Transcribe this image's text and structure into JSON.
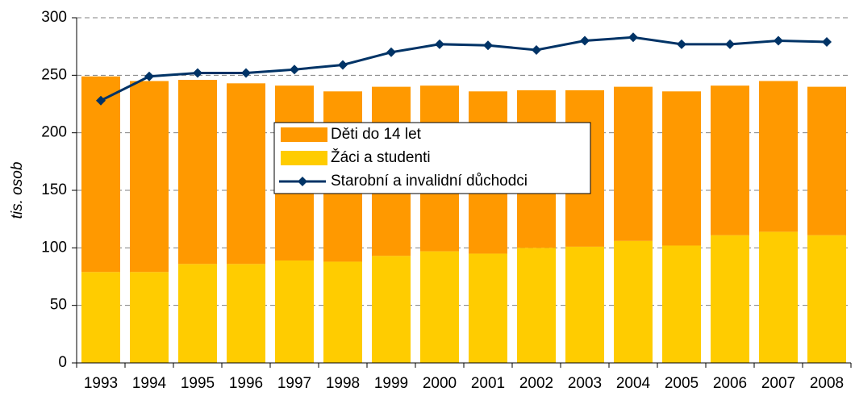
{
  "chart_data": {
    "type": "bar",
    "y_label": "tis. osob",
    "categories": [
      "1993",
      "1994",
      "1995",
      "1996",
      "1997",
      "1998",
      "1999",
      "2000",
      "2001",
      "2002",
      "2003",
      "2004",
      "2005",
      "2006",
      "2007",
      "2008"
    ],
    "series": [
      {
        "name": "Žáci a studenti",
        "color": "#ffcc00",
        "values": [
          79,
          79,
          86,
          86,
          89,
          88,
          93,
          97,
          95,
          100,
          101,
          106,
          102,
          111,
          114,
          111
        ]
      },
      {
        "name": "Děti do 14 let",
        "color": "#ff9900",
        "values": [
          170,
          166,
          160,
          157,
          152,
          148,
          147,
          144,
          141,
          137,
          136,
          134,
          134,
          130,
          131,
          129
        ]
      },
      {
        "name": "Starobní a invalidní důchodci",
        "type": "line",
        "color": "#003366",
        "values": [
          228,
          249,
          252,
          252,
          255,
          259,
          270,
          277,
          276,
          272,
          280,
          283,
          277,
          277,
          280,
          279
        ]
      }
    ],
    "legend_order": [
      1,
      0,
      2
    ],
    "ylim": [
      0,
      300
    ],
    "yticks": [
      0,
      50,
      100,
      150,
      200,
      250,
      300
    ],
    "grid": true
  }
}
